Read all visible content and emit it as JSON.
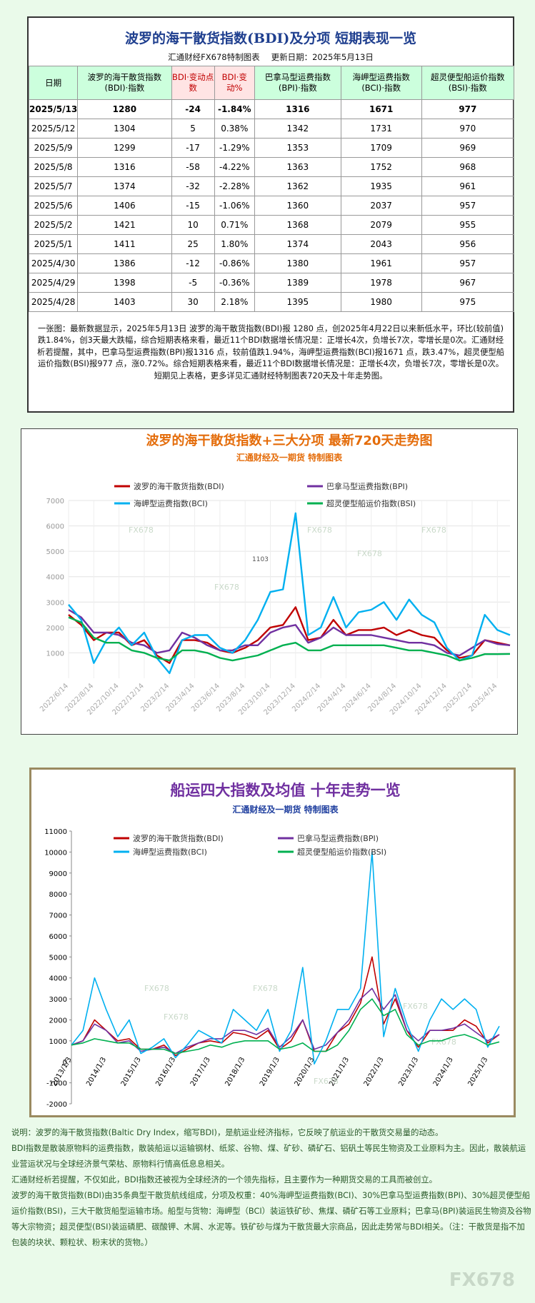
{
  "header": {
    "title": "波罗的海干散货指数(BDI)及分项  短期表现一览",
    "subtitle": "汇通财经FX678特制图表",
    "date": "更新日期：2025年5月13日"
  },
  "table": {
    "header": [
      "日期",
      "波罗的海干散货指数(BDI)·指数",
      "BDI·变动点数",
      "BDI·变动%",
      "巴拿马型运费指数(BPI)·指数",
      "海岬型运费指数(BCI)·指数",
      "超灵便型船运价指数(BSI)·指数"
    ],
    "rows": [
      [
        "2025/5/13",
        "1280",
        "-24",
        "-1.84%",
        "1316",
        "1671",
        "977"
      ],
      [
        "2025/5/12",
        "1304",
        "5",
        "0.38%",
        "1342",
        "1731",
        "970"
      ],
      [
        "2025/5/9",
        "1299",
        "-17",
        "-1.29%",
        "1353",
        "1709",
        "969"
      ],
      [
        "2025/5/8",
        "1316",
        "-58",
        "-4.22%",
        "1363",
        "1752",
        "968"
      ],
      [
        "2025/5/7",
        "1374",
        "-32",
        "-2.28%",
        "1362",
        "1935",
        "961"
      ],
      [
        "2025/5/6",
        "1406",
        "-15",
        "-1.06%",
        "1360",
        "2037",
        "957"
      ],
      [
        "2025/5/2",
        "1421",
        "10",
        "0.71%",
        "1368",
        "2079",
        "955"
      ],
      [
        "2025/5/1",
        "1411",
        "25",
        "1.80%",
        "1374",
        "2043",
        "956"
      ],
      [
        "2025/4/30",
        "1386",
        "-12",
        "-0.86%",
        "1380",
        "1961",
        "957"
      ],
      [
        "2025/4/29",
        "1398",
        "-5",
        "-0.36%",
        "1389",
        "1978",
        "967"
      ],
      [
        "2025/4/28",
        "1403",
        "30",
        "2.18%",
        "1395",
        "1980",
        "975"
      ]
    ]
  },
  "summary": "一张图：最新数据显示，2025年5月13日 波罗的海干散货指数(BDI)报 1280 点，创2025年4月22日以来新低水平，环比(较前值)跌1.84%，创3天最大跌幅，综合短期表格来看，最近11个BDI数据增长情况是：正增长4次，负增长7次，零增长是0次。汇通财经析若提醒，其中，巴拿马型运费指数(BPI)报1316 点，较前值跌1.94%，海岬型运费指数(BCI)报1671 点，跌3.47%，超灵便型船运价指数(BSI)报977 点，涨0.72%。综合短期表格来看，最近11个BDI数据增长情况是：正增长4次，负增长7次，零增长是0次。短期见上表格，更多详见汇通财经特制图表720天及十年走势图。",
  "chart_data": [
    {
      "type": "line",
      "title": "波罗的海干散货指数+三大分项  最新720天走势图",
      "subtitle": "汇通财经及一期货 特制图表",
      "watermark": "FX678",
      "annotation": "1103",
      "grid": true,
      "categories": [
        "2022/6/14",
        null,
        "2022/8/14",
        null,
        "2022/10/14",
        null,
        "2022/12/14",
        null,
        "2023/2/14",
        null,
        "2023/4/14",
        null,
        "2023/6/14",
        null,
        "2023/8/14",
        null,
        "2023/10/14",
        null,
        "2023/12/14",
        null,
        "2024/2/14",
        null,
        "2024/4/14",
        null,
        "2024/6/14",
        null,
        "2024/8/14",
        null,
        "2024/10/14",
        null,
        "2024/12/14",
        null,
        "2025/2/14",
        null,
        "2025/4/14",
        null
      ],
      "ylim": [
        0,
        7000
      ],
      "yticks": [
        1000,
        2000,
        3000,
        4000,
        5000,
        6000,
        7000
      ],
      "series": [
        {
          "name": "波罗的海干散货指数(BDI)",
          "color": "#c00000",
          "values": [
            2500,
            2100,
            1500,
            1800,
            1800,
            1300,
            1500,
            900,
            600,
            1500,
            1500,
            1400,
            1100,
            1000,
            1200,
            1500,
            2000,
            2100,
            2800,
            1500,
            1600,
            2300,
            1700,
            1900,
            1900,
            2000,
            1700,
            1900,
            1700,
            1600,
            1100,
            800,
            900,
            1500,
            1400,
            1300
          ]
        },
        {
          "name": "巴拿马型运费指数(BPI)",
          "color": "#7030a0",
          "values": [
            2700,
            2400,
            1800,
            1800,
            1700,
            1400,
            1300,
            1000,
            1100,
            1800,
            1600,
            1300,
            1100,
            1100,
            1300,
            1300,
            1800,
            2000,
            2100,
            1400,
            1600,
            2000,
            1700,
            1700,
            1700,
            1600,
            1500,
            1400,
            1400,
            1300,
            1000,
            900,
            1200,
            1500,
            1350,
            1300
          ]
        },
        {
          "name": "海岬型运费指数(BCI)",
          "color": "#00b0f0",
          "values": [
            2900,
            2300,
            600,
            1500,
            2000,
            1300,
            1800,
            800,
            200,
            1500,
            1700,
            1700,
            1200,
            1000,
            1500,
            2300,
            3400,
            3500,
            6500,
            1700,
            2000,
            3200,
            2000,
            2600,
            2700,
            3000,
            2300,
            3100,
            2500,
            2200,
            1200,
            700,
            900,
            2500,
            1900,
            1700
          ]
        },
        {
          "name": "超灵便型船运价指数(BSI)",
          "color": "#00b050",
          "values": [
            2400,
            2200,
            1600,
            1400,
            1400,
            1100,
            1000,
            800,
            700,
            1100,
            1100,
            1000,
            800,
            700,
            800,
            900,
            1100,
            1300,
            1400,
            1100,
            1100,
            1300,
            1300,
            1300,
            1300,
            1300,
            1200,
            1100,
            1100,
            1000,
            900,
            700,
            800,
            950,
            950,
            960
          ]
        }
      ]
    },
    {
      "type": "line",
      "title": "船运四大指数及均值 十年走势一览",
      "subtitle": "汇通财经及一期货 特制图表",
      "watermark": "FX678",
      "grid": false,
      "categories": [
        "2013/1/3",
        null,
        null,
        "2014/1/3",
        null,
        null,
        "2015/1/3",
        null,
        null,
        "2016/1/3",
        null,
        null,
        "2017/1/3",
        null,
        null,
        "2018/1/3",
        null,
        null,
        "2019/1/3",
        null,
        null,
        "2020/1/3",
        null,
        null,
        "2021/1/3",
        null,
        null,
        "2022/1/3",
        null,
        null,
        "2023/1/3",
        null,
        null,
        "2024/1/3",
        null,
        null,
        "2025/1/3",
        null
      ],
      "ylim": [
        -2000,
        11000
      ],
      "yticks": [
        -2000,
        -1000,
        0,
        1000,
        2000,
        3000,
        4000,
        5000,
        6000,
        7000,
        8000,
        9000,
        10000,
        11000
      ],
      "series": [
        {
          "name": "波罗的海干散货指数(BDI)",
          "color": "#c00000",
          "values": [
            800,
            1000,
            2000,
            1500,
            1000,
            1100,
            600,
            600,
            800,
            300,
            600,
            900,
            1000,
            900,
            1400,
            1300,
            1100,
            1500,
            600,
            1000,
            2000,
            500,
            500,
            1400,
            1800,
            2800,
            5000,
            1800,
            3000,
            1500,
            700,
            1500,
            1500,
            1500,
            2000,
            1700,
            900,
            1300
          ]
        },
        {
          "name": "巴拿马型运费指数(BPI)",
          "color": "#7030a0",
          "values": [
            800,
            1000,
            1800,
            1500,
            900,
            1000,
            500,
            600,
            700,
            400,
            700,
            900,
            1100,
            1100,
            1500,
            1500,
            1300,
            1600,
            700,
            1200,
            2000,
            600,
            800,
            1400,
            2000,
            3000,
            3500,
            2500,
            3200,
            1500,
            1000,
            1500,
            1500,
            1600,
            1800,
            1400,
            1000,
            1300
          ]
        },
        {
          "name": "海岬型运费指数(BCI)",
          "color": "#00b0f0",
          "values": [
            800,
            1500,
            4000,
            2500,
            1200,
            2000,
            400,
            700,
            1100,
            200,
            800,
            1500,
            1200,
            900,
            2500,
            2000,
            1500,
            2500,
            500,
            1500,
            4500,
            -100,
            1000,
            2500,
            2500,
            3500,
            10000,
            1200,
            3500,
            1800,
            500,
            2000,
            3000,
            2500,
            3000,
            2500,
            700,
            1700
          ]
        },
        {
          "name": "超灵便型船运价指数(BSI)",
          "color": "#00b050",
          "values": [
            800,
            900,
            1100,
            1000,
            900,
            900,
            600,
            600,
            600,
            400,
            500,
            600,
            800,
            700,
            900,
            1000,
            1000,
            1000,
            600,
            700,
            900,
            500,
            500,
            800,
            1500,
            2500,
            3000,
            2200,
            2500,
            1300,
            800,
            1000,
            1000,
            1200,
            1300,
            1100,
            800,
            950
          ]
        }
      ]
    }
  ],
  "notes": [
    "说明：波罗的海干散货指数(Baltic Dry Index，缩写BDI)，是航运业经济指标，它反映了航运业的干散货交易量的动态。",
    "BDI指数是散装原物料的运费指数，散装船运以运输钢材、纸浆、谷物、煤、矿砂、磷矿石、铝矾土等民生物资及工业原料为主。因此，散装航运业营运状况与全球经济景气荣枯、原物料行情高低息息相关。",
    "汇通财经析若提醒，不仅如此，BDI指数还被视为全球经济的一个领先指标，且主要作为一种期货交易的工具而被创立。",
    "波罗的海干散货指数(BDI)由35条典型干散货航线组成，分项及权重：40%海岬型运费指数(BCI)、30%巴拿马型运费指数(BPI)、30%超灵便型船运价指数(BSI)，三大干散货船型运输市场。船型与货物：海岬型（BCI）装运铁矿砂、焦煤、磷矿石等工业原料；巴拿马(BPI)装运民生物资及谷物等大宗物资；超灵便型(BSI)装运磷肥、碳酸钾、木屑、水泥等。铁矿砂与煤为干散货最大宗商品，因此走势常与BDI相关。（注：干散货是指不加包装的块状、颗粒状、粉末状的货物。）"
  ],
  "watermark": "FX678"
}
